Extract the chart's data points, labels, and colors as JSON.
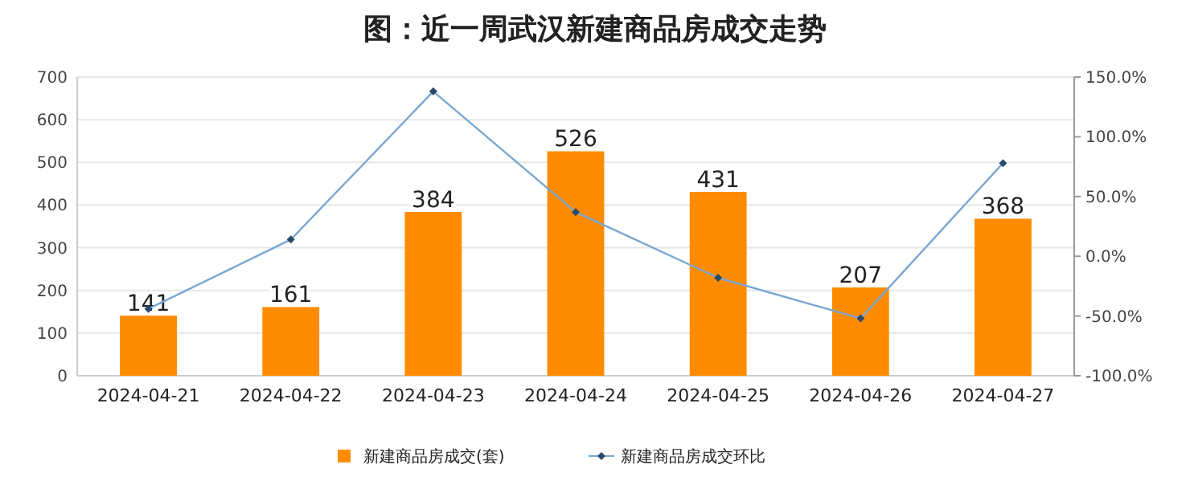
{
  "chart_data": {
    "type": "bar",
    "title": "图：近一周武汉新建商品房成交走势",
    "categories": [
      "2024-04-21",
      "2024-04-22",
      "2024-04-23",
      "2024-04-24",
      "2024-04-25",
      "2024-04-26",
      "2024-04-27"
    ],
    "series": [
      {
        "name": "新建商品房成交(套)",
        "color": "#ff8c00",
        "values": [
          141,
          161,
          384,
          526,
          431,
          207,
          368
        ],
        "value_labels": [
          "141",
          "161",
          "384",
          "526",
          "431",
          "207",
          "368"
        ]
      },
      {
        "name": "新建商品房成交环比",
        "type": "line",
        "axis": "y2",
        "color": "#7ba7d0",
        "marker": "diamond",
        "values": [
          -44,
          14,
          138,
          37,
          -18,
          -52,
          78
        ]
      }
    ],
    "ylim": [
      0,
      700
    ],
    "yticks": [
      0,
      100,
      200,
      300,
      400,
      500,
      600,
      700
    ],
    "y2lim": [
      -100,
      150
    ],
    "y2ticks": [
      {
        "value": -100,
        "label": "-100.0%"
      },
      {
        "value": -50,
        "label": "-50.0%"
      },
      {
        "value": 0,
        "label": "0.0%"
      },
      {
        "value": 50,
        "label": "50.0%"
      },
      {
        "value": 100,
        "label": "100.0%"
      },
      {
        "value": 150,
        "label": "150.0%"
      }
    ],
    "grid": "y",
    "legend": "bottom"
  }
}
